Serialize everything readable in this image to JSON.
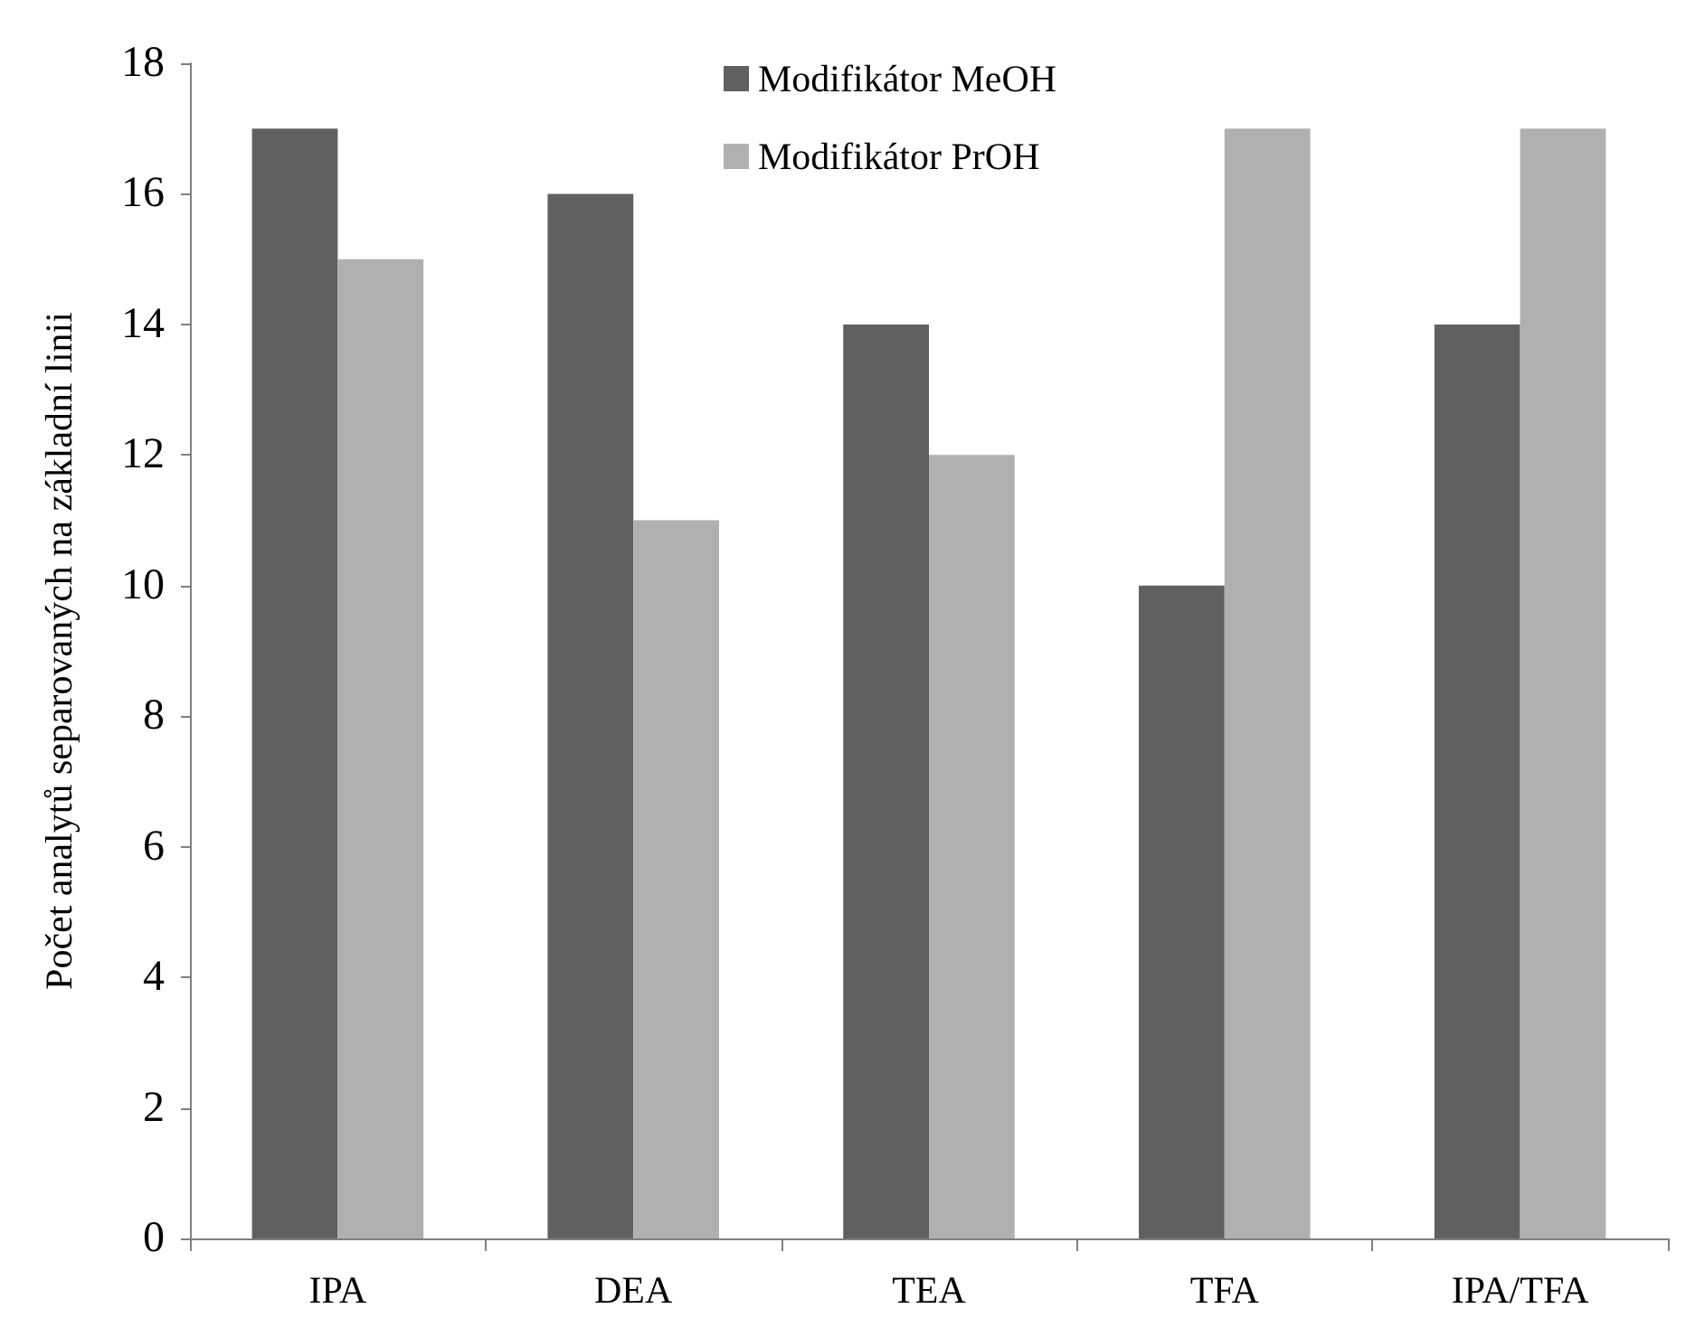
{
  "chart_data": {
    "type": "bar",
    "ylabel": "Počet analytů separovaných na základní linii",
    "categories": [
      "IPA",
      "DEA",
      "TEA",
      "TFA",
      "IPA/TFA"
    ],
    "series": [
      {
        "name": "Modifikátor MeOH",
        "color": "#606060",
        "values": [
          17,
          16,
          14,
          10,
          14
        ]
      },
      {
        "name": "Modifikátor PrOH",
        "color": "#b0b0b0",
        "values": [
          15,
          11,
          12,
          17,
          17
        ]
      }
    ],
    "ylim": [
      0,
      18
    ],
    "yticks": [
      0,
      2,
      4,
      6,
      8,
      10,
      12,
      14,
      16,
      18
    ],
    "grid": false,
    "legend": "top"
  }
}
